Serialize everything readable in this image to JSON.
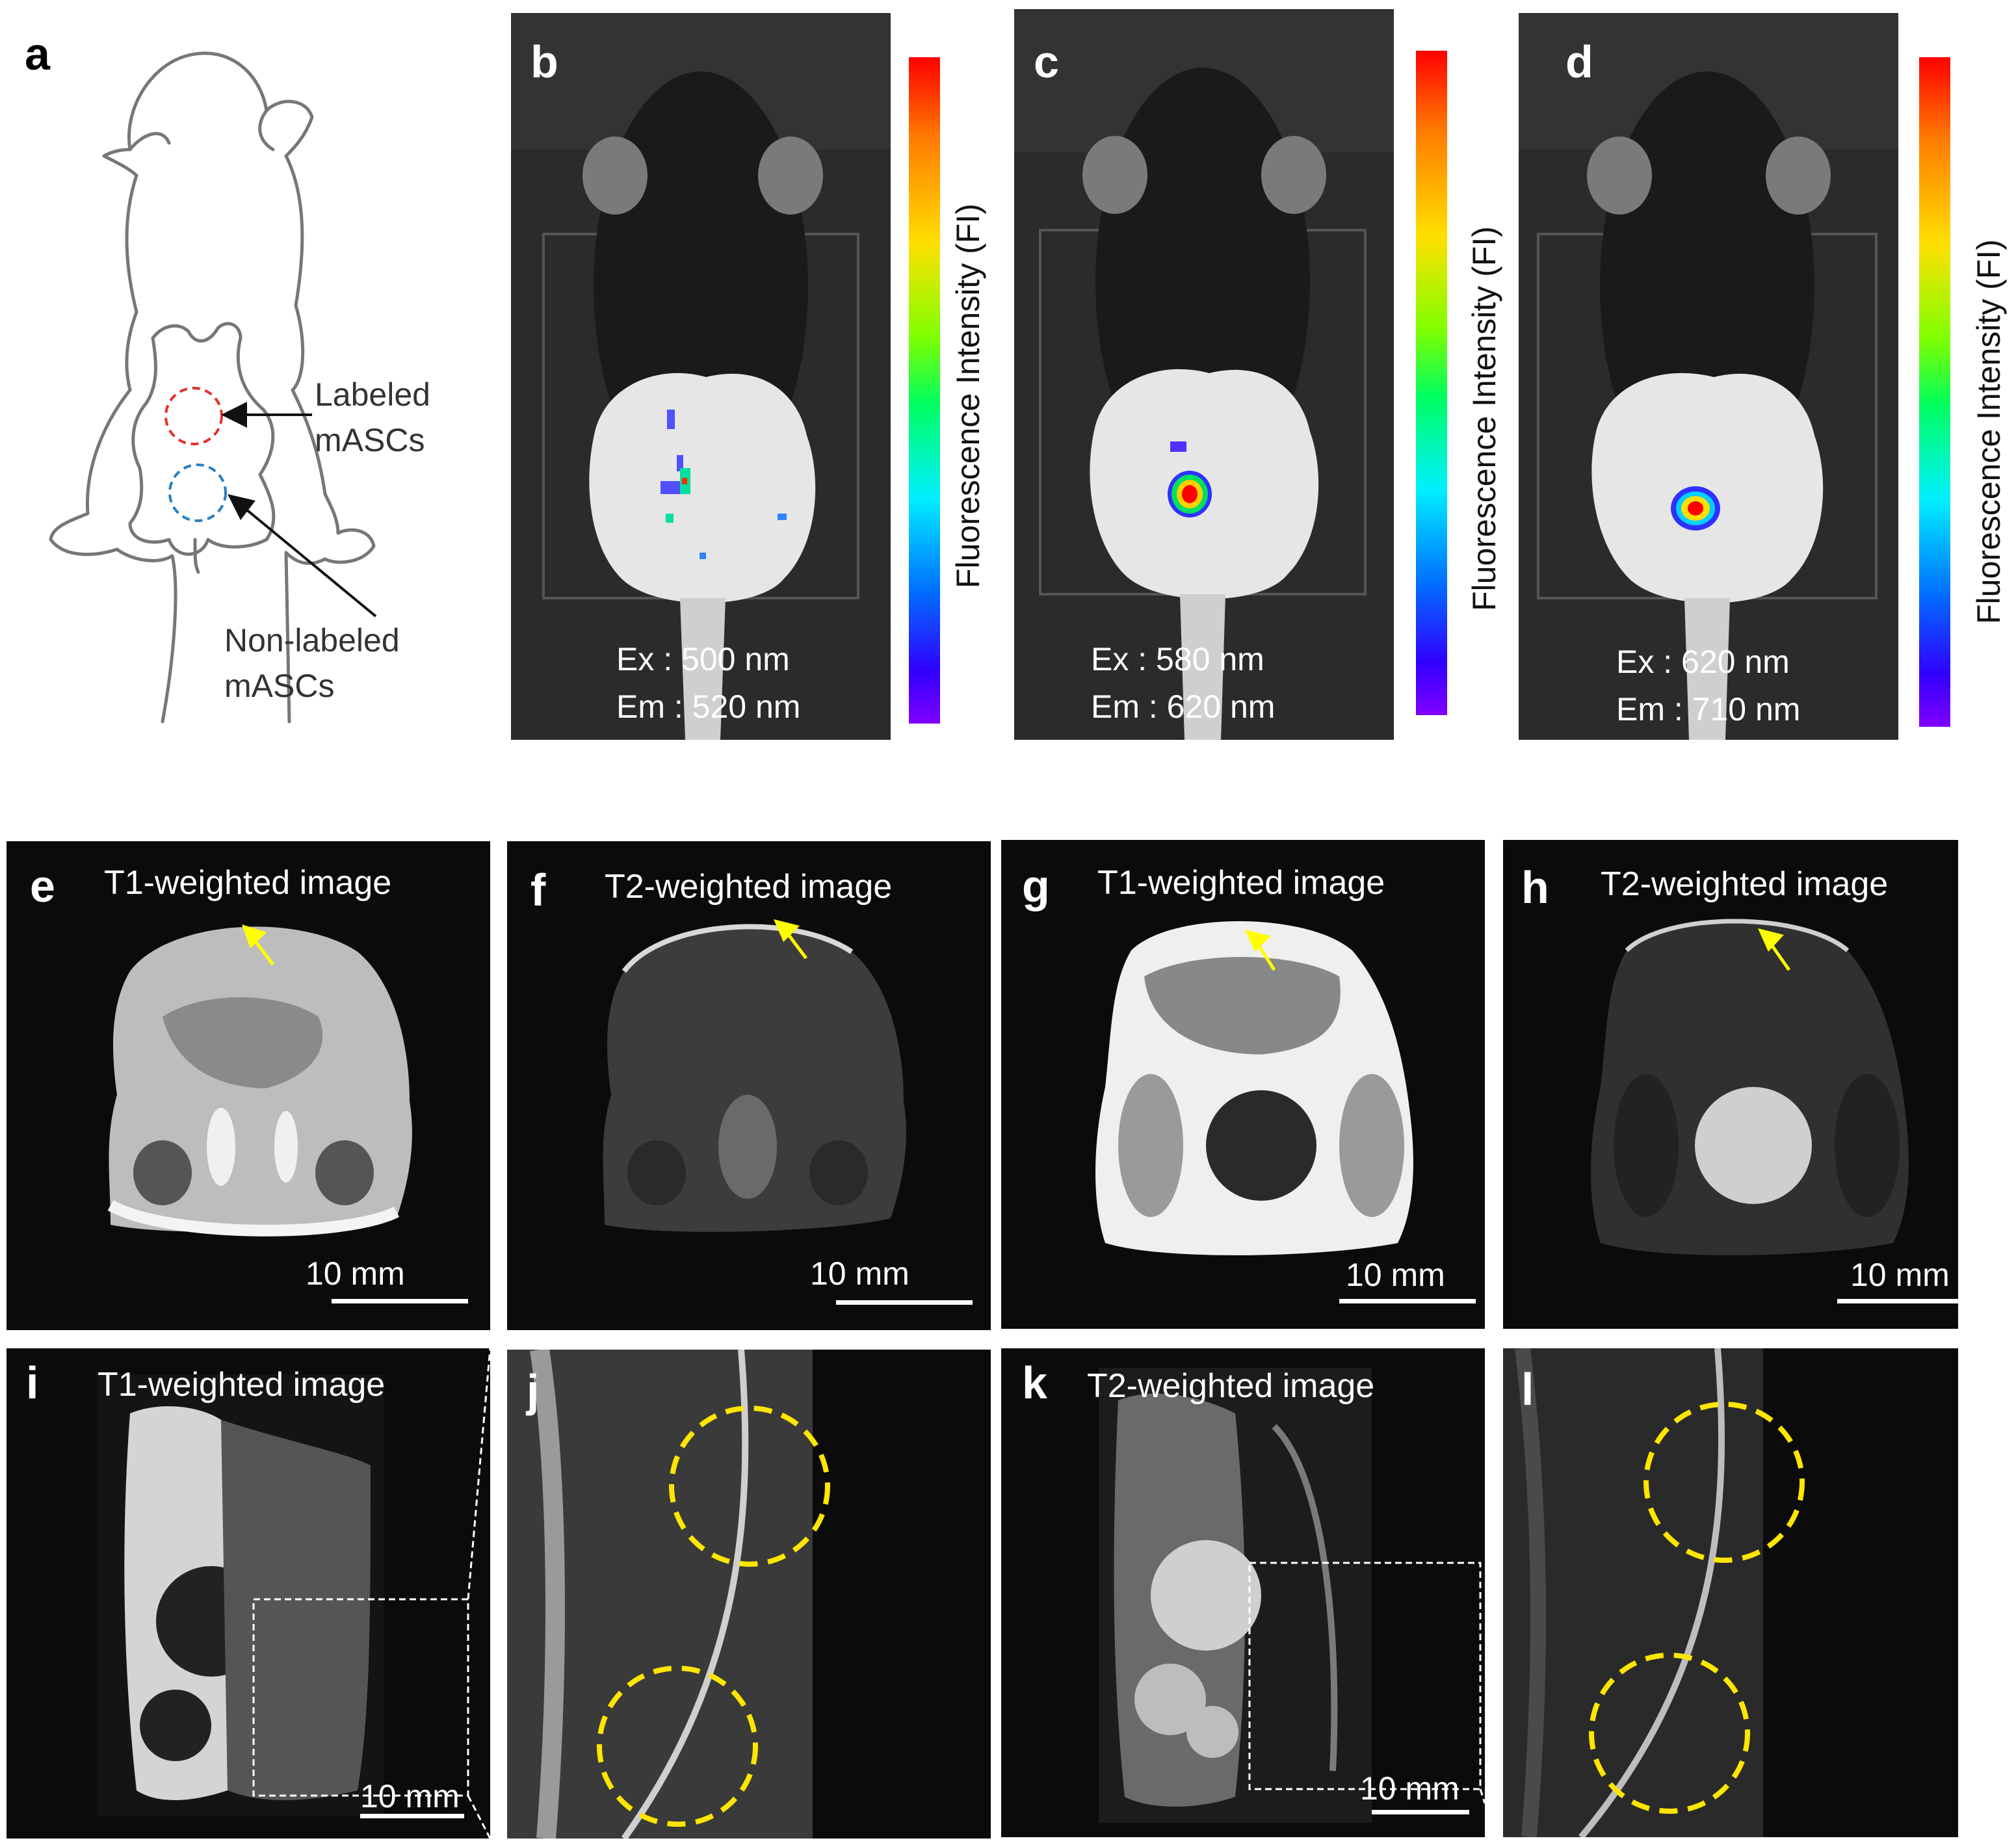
{
  "panel_a": {
    "label": "a",
    "labeled_text_1": "Labeled",
    "labeled_text_2": "mASCs",
    "nonlabeled_text_1": "Non-labeled",
    "nonlabeled_text_2": "mASCs",
    "labeled_color": "#e0332b",
    "nonlabeled_color": "#2a7fc0"
  },
  "fluorescence": [
    {
      "label": "b",
      "ex": "Ex : 500 nm",
      "em": "Em : 520 nm",
      "bar_label": "Fluorescence Intensity (FI)"
    },
    {
      "label": "c",
      "ex": "Ex  : 580 nm",
      "em": "Em : 620 nm",
      "bar_label": "Fluorescence Intensity (FI)"
    },
    {
      "label": "d",
      "ex": "Ex  : 620 nm",
      "em": "Em : 710 nm",
      "bar_label": "Fluorescence Intensity (FI)"
    }
  ],
  "mri_axial": [
    {
      "label": "e",
      "title": "T1-weighted image",
      "scale": "10 mm"
    },
    {
      "label": "f",
      "title": "T2-weighted image",
      "scale": "10 mm"
    },
    {
      "label": "g",
      "title": "T1-weighted image",
      "scale": "10 mm"
    },
    {
      "label": "h",
      "title": "T2-weighted image",
      "scale": "10 mm"
    }
  ],
  "mri_coronal": [
    {
      "label": "i",
      "title": "T1-weighted image",
      "scale": "10 mm"
    },
    {
      "label": "j"
    },
    {
      "label": "k",
      "title": "T2-weighted image",
      "scale": "10 mm"
    },
    {
      "label": "l"
    }
  ],
  "colors": {
    "arrow": "#ffff00",
    "circle": "#ffe600",
    "background": "#0b0b0b"
  }
}
